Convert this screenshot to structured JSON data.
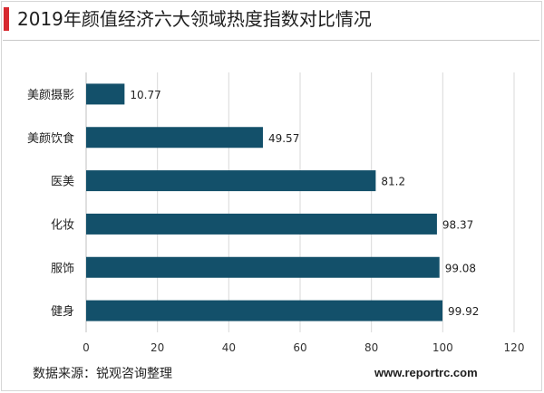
{
  "header": {
    "title": "2019年颜值经济六大领域热度指数对比情况"
  },
  "footer": {
    "source": "数据来源：锐观咨询整理",
    "website": "www.reportrc.com"
  },
  "colors": {
    "accent": "#d7282f",
    "bar": "#13506a"
  },
  "chart_data": {
    "type": "bar",
    "orientation": "horizontal",
    "title": "2019年颜值经济六大领域热度指数对比情况",
    "categories": [
      "美颜摄影",
      "美颜饮食",
      "医美",
      "化妆",
      "服饰",
      "健身"
    ],
    "values": [
      10.77,
      49.57,
      81.2,
      98.37,
      99.08,
      99.92
    ],
    "value_labels": [
      "10.77",
      "49.57",
      "81.2",
      "98.37",
      "99.08",
      "99.92"
    ],
    "xlim": [
      0,
      120
    ],
    "ticks": [
      "0",
      "20",
      "40",
      "60",
      "80",
      "100",
      "120"
    ],
    "xlabel": "",
    "ylabel": "",
    "grid": "vertical",
    "legend": "none"
  }
}
